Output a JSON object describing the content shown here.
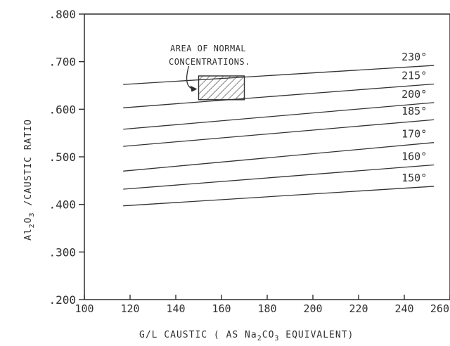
{
  "chart_data": {
    "type": "line",
    "xlabel_parts": [
      "G/L  CAUSTIC  ( AS Na",
      "2",
      "CO",
      "3",
      " EQUIVALENT)"
    ],
    "ylabel_parts": [
      "Al",
      "2",
      "O",
      "3",
      " /CAUSTIC RATIO"
    ],
    "xlim": [
      100,
      260
    ],
    "ylim": [
      0.2,
      0.8
    ],
    "x_ticks": [
      100,
      120,
      140,
      160,
      180,
      200,
      220,
      240,
      260
    ],
    "x_tick_labels": [
      "100",
      "120",
      "140",
      "160",
      "180",
      "200",
      "220",
      "240",
      "260"
    ],
    "y_ticks": [
      0.2,
      0.3,
      0.4,
      0.5,
      0.6,
      0.7,
      0.8
    ],
    "y_tick_labels": [
      ".200",
      ".300",
      ".400",
      ".500",
      ".600",
      ".700",
      ".800"
    ],
    "grid": false,
    "series": [
      {
        "name": "230°",
        "x": [
          117,
          253
        ],
        "y": [
          0.652,
          0.692
        ]
      },
      {
        "name": "215°",
        "x": [
          117,
          253
        ],
        "y": [
          0.603,
          0.653
        ]
      },
      {
        "name": "200°",
        "x": [
          117,
          253
        ],
        "y": [
          0.558,
          0.614
        ]
      },
      {
        "name": "185°",
        "x": [
          117,
          253
        ],
        "y": [
          0.522,
          0.578
        ]
      },
      {
        "name": "170°",
        "x": [
          117,
          253
        ],
        "y": [
          0.47,
          0.53
        ]
      },
      {
        "name": "160°",
        "x": [
          117,
          253
        ],
        "y": [
          0.432,
          0.483
        ]
      },
      {
        "name": "150°",
        "x": [
          117,
          253
        ],
        "y": [
          0.397,
          0.438
        ]
      }
    ],
    "annotation": {
      "text_lines": [
        "AREA OF NORMAL",
        "CONCENTRATIONS."
      ],
      "region": {
        "x": [
          150,
          170
        ],
        "y": [
          0.62,
          0.67
        ]
      }
    }
  }
}
